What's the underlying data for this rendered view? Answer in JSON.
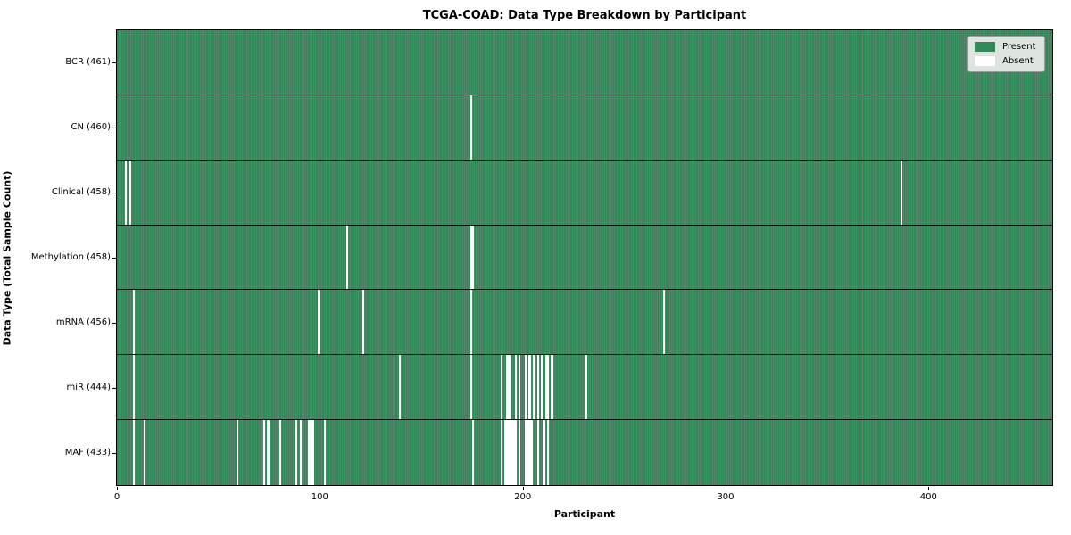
{
  "chart_data": {
    "type": "heatmap",
    "title": "TCGA-COAD: Data Type Breakdown by Participant",
    "xlabel": "Participant",
    "ylabel": "Data Type (Total Sample Count)",
    "n_participants": 461,
    "x_range": [
      0,
      461
    ],
    "x_ticks": [
      0,
      100,
      200,
      300,
      400
    ],
    "present_color": "#2e8b57",
    "absent_color": "#ffffff",
    "grid": false,
    "legend": {
      "position": "upper right",
      "entries": [
        {
          "label": "Present",
          "color": "#2e8b57"
        },
        {
          "label": "Absent",
          "color": "#ffffff"
        }
      ]
    },
    "rows": [
      {
        "name": "BCR",
        "label": "BCR (461)",
        "present_count": 461,
        "absent_participants": []
      },
      {
        "name": "CN",
        "label": "CN (460)",
        "present_count": 460,
        "absent_participants": [
          174
        ]
      },
      {
        "name": "Clinical",
        "label": "Clinical (458)",
        "present_count": 458,
        "absent_participants": [
          4,
          6,
          386
        ]
      },
      {
        "name": "Methylation",
        "label": "Methylation (458)",
        "present_count": 458,
        "absent_participants": [
          113,
          174,
          175
        ]
      },
      {
        "name": "mRNA",
        "label": "mRNA (456)",
        "present_count": 456,
        "absent_participants": [
          8,
          99,
          121,
          174,
          269
        ]
      },
      {
        "name": "miR",
        "label": "miR (444)",
        "present_count": 444,
        "absent_participants": [
          8,
          139,
          174,
          189,
          192,
          193,
          196,
          198,
          201,
          203,
          205,
          207,
          209,
          211,
          212,
          214,
          231
        ]
      },
      {
        "name": "MAF",
        "label": "MAF (433)",
        "present_count": 433,
        "absent_participants": [
          8,
          13,
          59,
          72,
          74,
          80,
          88,
          90,
          94,
          95,
          96,
          102,
          175,
          189,
          191,
          192,
          193,
          194,
          195,
          196,
          198,
          201,
          202,
          203,
          204,
          207,
          210,
          212
        ]
      }
    ]
  }
}
